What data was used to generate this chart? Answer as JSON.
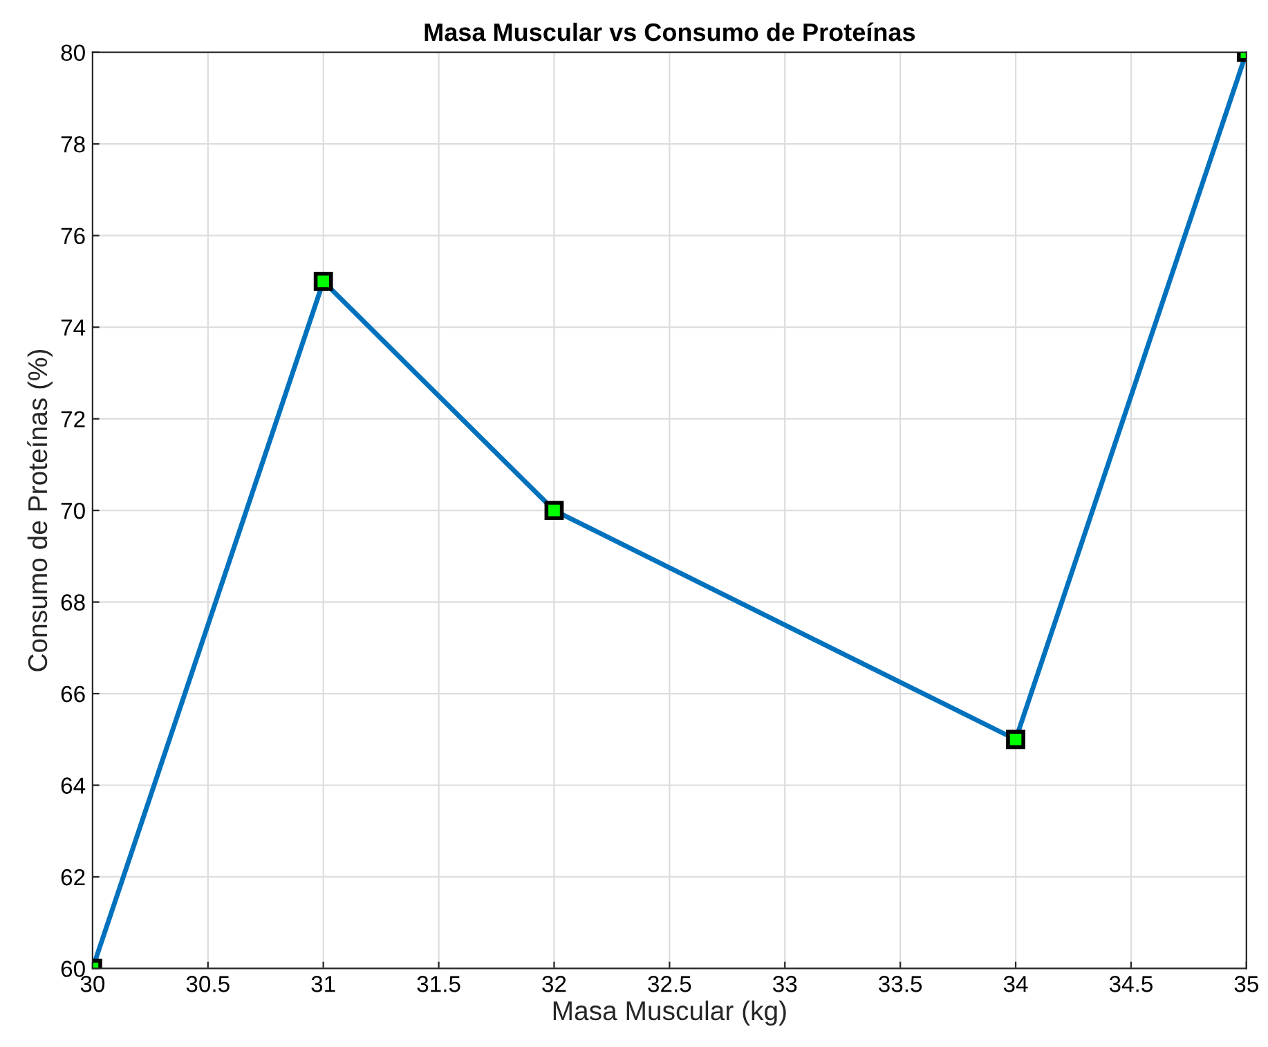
{
  "chart_data": {
    "type": "line",
    "title": "Masa Muscular vs Consumo de Proteínas",
    "xlabel": "Masa Muscular (kg)",
    "ylabel": "Consumo de Proteínas (%)",
    "x": [
      30,
      31,
      32,
      34,
      35
    ],
    "series": [
      {
        "color": "#0072bd",
        "values": [
          60,
          75,
          70,
          65,
          80
        ]
      }
    ],
    "xlim": [
      30,
      35
    ],
    "xticks": [
      30,
      30.5,
      31,
      31.5,
      32,
      32.5,
      33,
      33.5,
      34,
      34.5,
      35
    ],
    "ylim": [
      60,
      80
    ],
    "yticks": [
      60,
      62,
      64,
      66,
      68,
      70,
      72,
      74,
      76,
      78,
      80
    ],
    "grid": true,
    "marker": "square",
    "line_style": "solid"
  }
}
